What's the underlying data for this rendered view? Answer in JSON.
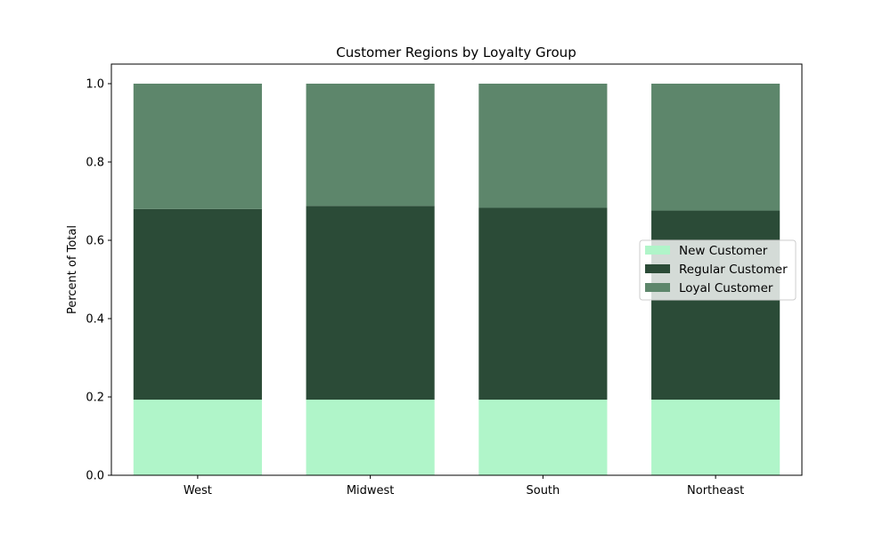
{
  "chart_data": {
    "type": "bar",
    "stacked": true,
    "title": "Customer Regions by Loyalty Group",
    "xlabel": "",
    "ylabel": "Percent of Total",
    "categories": [
      "West",
      "Midwest",
      "South",
      "Northeast"
    ],
    "series": [
      {
        "name": "New Customer",
        "color": "#b0f5c9",
        "values": [
          0.193,
          0.193,
          0.193,
          0.193
        ]
      },
      {
        "name": "Regular Customer",
        "color": "#2b4b37",
        "values": [
          0.487,
          0.495,
          0.49,
          0.483
        ]
      },
      {
        "name": "Loyal Customer",
        "color": "#5d866b",
        "values": [
          0.32,
          0.312,
          0.317,
          0.324
        ]
      }
    ],
    "ylim": [
      0,
      1.05
    ],
    "yticks": [
      "0.0",
      "0.2",
      "0.4",
      "0.6",
      "0.8",
      "1.0"
    ],
    "ytick_values": [
      0.0,
      0.2,
      0.4,
      0.6,
      0.8,
      1.0
    ],
    "legend_position": "center-right",
    "grid": false
  }
}
